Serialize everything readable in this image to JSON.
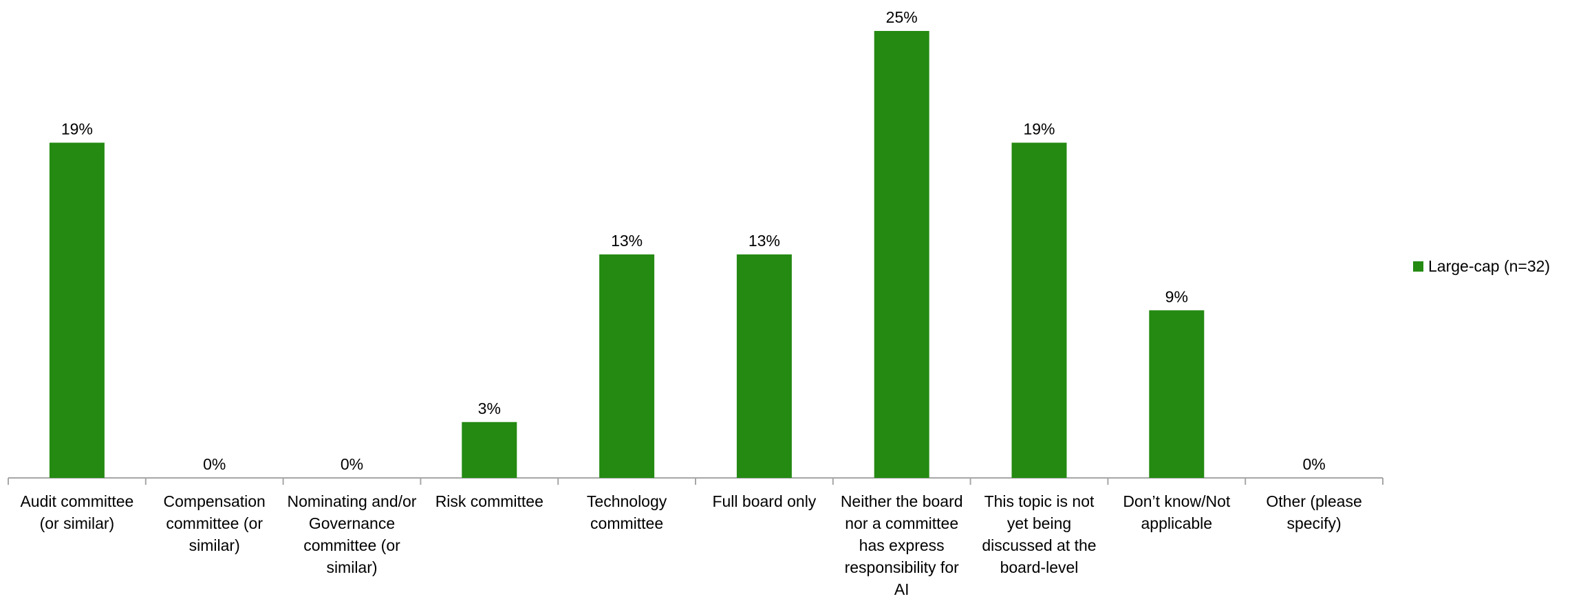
{
  "chart_data": {
    "type": "bar",
    "categories": [
      "Audit committee (or similar)",
      "Compensation committee (or similar)",
      "Nominating and/or Governance committee (or similar)",
      "Risk committee",
      "Technology committee",
      "Full board only",
      "Neither the board nor a committee has express responsibility for AI",
      "This topic is not yet being discussed at the board-level",
      "Don’t know/Not applicable",
      "Other (please specify)"
    ],
    "series": [
      {
        "name": "Large-cap (n=32)",
        "color": "#248a12",
        "values": [
          18.75,
          0,
          0,
          3.125,
          12.5,
          12.5,
          25,
          18.75,
          9.375,
          0
        ],
        "value_labels": [
          "19%",
          "0%",
          "0%",
          "3%",
          "13%",
          "13%",
          "25%",
          "19%",
          "9%",
          "0%"
        ]
      }
    ],
    "legend": "right"
  }
}
